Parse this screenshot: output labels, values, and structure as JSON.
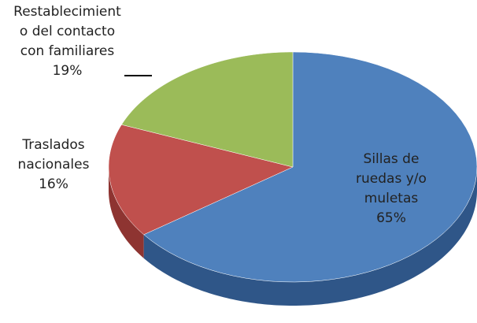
{
  "chart_data": {
    "type": "pie",
    "categories": [
      "Sillas de ruedas y/o muletas",
      "Traslados nacionales",
      "Restablecimiento del contacto con familiares"
    ],
    "values": [
      65,
      16,
      19
    ],
    "value_labels": [
      "65%",
      "16%",
      "19%"
    ],
    "colors": [
      "#4f81bd",
      "#c0504d",
      "#9bbb59"
    ],
    "side_colors": [
      "#2f5688",
      "#8e3431",
      "#6f8a3c"
    ]
  }
}
